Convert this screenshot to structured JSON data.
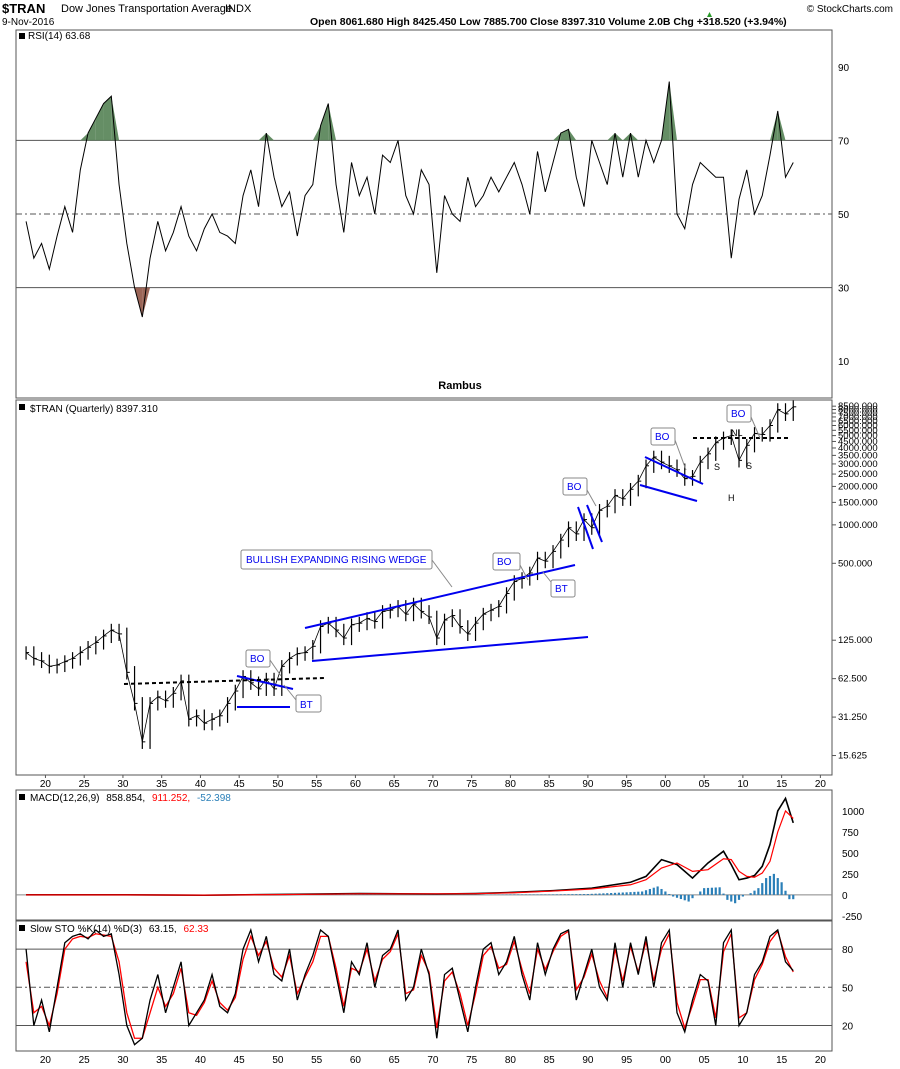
{
  "header": {
    "symbol": "$TRAN",
    "name": "Dow Jones Transportation Average",
    "exchange": "INDX",
    "date": "9-Nov-2016",
    "ohlc": "Open 8061.680  High 8425.450  Low 7885.700  Close 8397.310  Volume 2.0B  Chg +318.520 (+3.94%)",
    "ohlc_up_icon": "up-triangle",
    "brand": "© StockCharts.com",
    "watermark": "Rambus"
  },
  "colors": {
    "price": "#000000",
    "annotation": "#0000ee",
    "rsi_overbought_fill": "#4a7a4a",
    "rsi_oversold_fill": "#8a4a3a",
    "macd_line": "#000000",
    "macd_signal": "#ff0000",
    "macd_hist": "#2a7fb8",
    "sto_k": "#000000",
    "sto_d": "#ff0000"
  },
  "chart_data": [
    {
      "type": "line",
      "panel": "rsi",
      "label": "RSI(14) 63.68",
      "y_ticks": [
        "90",
        "70",
        "50",
        "30",
        "10"
      ],
      "ylim": [
        0,
        100
      ],
      "reference_lines": [
        70,
        50,
        30
      ],
      "x": [
        1917,
        1918,
        1919,
        1920,
        1921,
        1922,
        1923,
        1924,
        1925,
        1926,
        1927,
        1928,
        1929,
        1930,
        1931,
        1932,
        1933,
        1934,
        1935,
        1936,
        1937,
        1938,
        1939,
        1940,
        1941,
        1942,
        1943,
        1944,
        1945,
        1946,
        1947,
        1948,
        1949,
        1950,
        1951,
        1952,
        1953,
        1954,
        1955,
        1956,
        1957,
        1958,
        1959,
        1960,
        1961,
        1962,
        1963,
        1964,
        1965,
        1966,
        1967,
        1968,
        1969,
        1970,
        1971,
        1972,
        1973,
        1974,
        1975,
        1976,
        1977,
        1978,
        1979,
        1980,
        1981,
        1982,
        1983,
        1984,
        1985,
        1986,
        1987,
        1988,
        1989,
        1990,
        1991,
        1992,
        1993,
        1994,
        1995,
        1996,
        1997,
        1998,
        1999,
        2000,
        2001,
        2002,
        2003,
        2004,
        2005,
        2006,
        2007,
        2008,
        2009,
        2010,
        2011,
        2012,
        2013,
        2014,
        2015,
        2016
      ],
      "values": [
        48,
        38,
        42,
        35,
        44,
        52,
        45,
        62,
        72,
        76,
        80,
        82,
        58,
        42,
        30,
        22,
        38,
        48,
        40,
        45,
        52,
        44,
        40,
        46,
        50,
        45,
        44,
        42,
        55,
        62,
        52,
        72,
        60,
        52,
        56,
        44,
        55,
        58,
        74,
        80,
        58,
        45,
        64,
        55,
        60,
        50,
        66,
        64,
        70,
        55,
        50,
        62,
        58,
        34,
        55,
        50,
        48,
        60,
        52,
        55,
        60,
        56,
        60,
        64,
        58,
        50,
        67,
        56,
        64,
        72,
        73,
        60,
        52,
        70,
        64,
        58,
        72,
        60,
        72,
        60,
        70,
        64,
        70,
        86,
        50,
        46,
        58,
        64,
        62,
        60,
        60,
        38,
        54,
        62,
        50,
        55,
        66,
        78,
        60,
        64
      ]
    },
    {
      "type": "line",
      "panel": "price",
      "title": "$TRAN (Quarterly) 8397.310",
      "yscale": "log",
      "y_ticks": [
        "8500.000",
        "8000.000",
        "7500.000",
        "7000.000",
        "6500.000",
        "6000.000",
        "5500.000",
        "5000.000",
        "4500.000",
        "4000.000",
        "3500.000",
        "3000.000",
        "2500.000",
        "2000.000",
        "1500.000",
        "1000.000",
        "500.000",
        "125.000",
        "62.500",
        "31.250",
        "15.625"
      ],
      "x_ticks": [
        "20",
        "25",
        "30",
        "35",
        "40",
        "45",
        "50",
        "55",
        "60",
        "65",
        "70",
        "75",
        "80",
        "85",
        "90",
        "95",
        "00",
        "05",
        "10",
        "15",
        "20"
      ],
      "ylim": [
        11,
        9500
      ],
      "x": [
        1917,
        1918,
        1919,
        1920,
        1921,
        1922,
        1923,
        1924,
        1925,
        1926,
        1927,
        1928,
        1929,
        1930,
        1931,
        1932,
        1933,
        1934,
        1935,
        1936,
        1937,
        1938,
        1939,
        1940,
        1941,
        1942,
        1943,
        1944,
        1945,
        1946,
        1947,
        1948,
        1949,
        1950,
        1951,
        1952,
        1953,
        1954,
        1955,
        1956,
        1957,
        1958,
        1959,
        1960,
        1961,
        1962,
        1963,
        1964,
        1965,
        1966,
        1967,
        1968,
        1969,
        1970,
        1971,
        1972,
        1973,
        1974,
        1975,
        1976,
        1977,
        1978,
        1979,
        1980,
        1981,
        1982,
        1983,
        1984,
        1985,
        1986,
        1987,
        1988,
        1989,
        1990,
        1991,
        1992,
        1993,
        1994,
        1995,
        1996,
        1997,
        1998,
        1999,
        2000,
        2001,
        2002,
        2003,
        2004,
        2005,
        2006,
        2007,
        2008,
        2009,
        2010,
        2011,
        2012,
        2013,
        2014,
        2015,
        2016
      ],
      "values": [
        100,
        90,
        86,
        78,
        80,
        85,
        90,
        100,
        110,
        120,
        135,
        150,
        140,
        70,
        40,
        20,
        40,
        45,
        42,
        48,
        60,
        30,
        32,
        28,
        30,
        32,
        40,
        50,
        65,
        58,
        52,
        62,
        52,
        78,
        90,
        98,
        100,
        112,
        160,
        170,
        150,
        130,
        165,
        170,
        185,
        175,
        210,
        215,
        230,
        200,
        240,
        210,
        190,
        130,
        180,
        195,
        160,
        140,
        170,
        200,
        215,
        230,
        290,
        360,
        380,
        420,
        550,
        520,
        620,
        760,
        950,
        850,
        1100,
        950,
        1300,
        1400,
        1700,
        1600,
        1900,
        2200,
        2900,
        3400,
        3100,
        2900,
        2700,
        2300,
        2400,
        3100,
        3600,
        4400,
        4800,
        5000,
        3200,
        4200,
        5200,
        5100,
        6000,
        8000,
        7400,
        8400
      ]
    },
    {
      "type": "line",
      "panel": "macd",
      "label_name": "MACD(12,26,9)",
      "label_macd": "858.854,",
      "label_signal": "911.252,",
      "label_hist": "-52.398",
      "y_ticks": [
        "1000",
        "750",
        "500",
        "250",
        "0",
        "-250"
      ],
      "ylim": [
        -300,
        1250
      ],
      "x": [
        1917,
        1930,
        1940,
        1950,
        1960,
        1970,
        1975,
        1980,
        1985,
        1990,
        1995,
        1997,
        1999,
        2001,
        2003,
        2005,
        2007,
        2008,
        2009,
        2010,
        2011,
        2012,
        2013,
        2014,
        2015,
        2016
      ],
      "series": [
        {
          "name": "MACD",
          "values": [
            0,
            0,
            -5,
            5,
            15,
            10,
            15,
            30,
            50,
            80,
            150,
            220,
            420,
            360,
            200,
            380,
            520,
            360,
            180,
            200,
            230,
            340,
            600,
            1000,
            1150,
            858
          ]
        },
        {
          "name": "Signal",
          "values": [
            0,
            0,
            -3,
            3,
            12,
            12,
            14,
            25,
            45,
            70,
            120,
            180,
            320,
            380,
            280,
            300,
            430,
            420,
            280,
            220,
            210,
            260,
            400,
            750,
            1000,
            911
          ]
        },
        {
          "name": "Histogram",
          "values": [
            0,
            0,
            -2,
            2,
            3,
            -2,
            1,
            5,
            5,
            10,
            30,
            40,
            100,
            -20,
            -80,
            80,
            90,
            -60,
            -100,
            -20,
            20,
            80,
            200,
            250,
            150,
            -52
          ]
        }
      ]
    },
    {
      "type": "line",
      "panel": "stochastic",
      "label_name": "Slow STO %K(14) %D(3)",
      "label_k": "63.15,",
      "label_d": "62.33",
      "y_ticks": [
        "80",
        "50",
        "20"
      ],
      "ylim": [
        0,
        100
      ],
      "reference_lines": [
        80,
        50,
        20
      ],
      "x_ticks": [
        "20",
        "25",
        "30",
        "35",
        "40",
        "45",
        "50",
        "55",
        "60",
        "65",
        "70",
        "75",
        "80",
        "85",
        "90",
        "95",
        "00",
        "05",
        "10",
        "15",
        "20"
      ],
      "x": [
        1917,
        1918,
        1919,
        1920,
        1921,
        1922,
        1923,
        1924,
        1925,
        1926,
        1927,
        1928,
        1929,
        1930,
        1931,
        1932,
        1933,
        1934,
        1935,
        1936,
        1937,
        1938,
        1939,
        1940,
        1941,
        1942,
        1943,
        1944,
        1945,
        1946,
        1947,
        1948,
        1949,
        1950,
        1951,
        1952,
        1953,
        1954,
        1955,
        1956,
        1957,
        1958,
        1959,
        1960,
        1961,
        1962,
        1963,
        1964,
        1965,
        1966,
        1967,
        1968,
        1969,
        1970,
        1971,
        1972,
        1973,
        1974,
        1975,
        1976,
        1977,
        1978,
        1979,
        1980,
        1981,
        1982,
        1983,
        1984,
        1985,
        1986,
        1987,
        1988,
        1989,
        1990,
        1991,
        1992,
        1993,
        1994,
        1995,
        1996,
        1997,
        1998,
        1999,
        2000,
        2001,
        2002,
        2003,
        2004,
        2005,
        2006,
        2007,
        2008,
        2009,
        2010,
        2011,
        2012,
        2013,
        2014,
        2015,
        2016
      ],
      "series": [
        {
          "name": "%K",
          "values": [
            80,
            20,
            40,
            15,
            50,
            85,
            90,
            92,
            88,
            95,
            90,
            92,
            60,
            20,
            5,
            10,
            40,
            60,
            30,
            50,
            70,
            20,
            30,
            40,
            60,
            35,
            30,
            45,
            80,
            95,
            70,
            90,
            60,
            55,
            80,
            40,
            60,
            75,
            95,
            90,
            60,
            30,
            70,
            60,
            85,
            50,
            75,
            80,
            95,
            40,
            50,
            80,
            60,
            10,
            60,
            65,
            40,
            15,
            50,
            80,
            85,
            60,
            70,
            90,
            60,
            40,
            85,
            60,
            80,
            92,
            95,
            40,
            60,
            80,
            50,
            40,
            85,
            50,
            85,
            60,
            90,
            50,
            85,
            95,
            30,
            15,
            40,
            60,
            55,
            20,
            85,
            95,
            20,
            30,
            60,
            70,
            90,
            95,
            70,
            63
          ]
        },
        {
          "name": "%D",
          "values": [
            70,
            30,
            35,
            20,
            45,
            80,
            88,
            90,
            89,
            92,
            91,
            90,
            70,
            30,
            10,
            10,
            30,
            50,
            35,
            45,
            65,
            30,
            28,
            38,
            55,
            38,
            32,
            42,
            72,
            90,
            75,
            86,
            65,
            58,
            75,
            45,
            58,
            70,
            90,
            90,
            65,
            35,
            65,
            62,
            80,
            55,
            72,
            78,
            92,
            45,
            48,
            75,
            62,
            18,
            55,
            62,
            45,
            20,
            45,
            75,
            82,
            65,
            68,
            86,
            64,
            45,
            80,
            64,
            78,
            90,
            94,
            48,
            58,
            76,
            55,
            42,
            80,
            55,
            82,
            62,
            86,
            55,
            80,
            92,
            38,
            18,
            36,
            56,
            56,
            26,
            78,
            92,
            26,
            30,
            56,
            68,
            86,
            94,
            74,
            62
          ]
        }
      ]
    }
  ],
  "annotations": {
    "wedge_label": "BULLISH EXPANDING RISING WEDGE",
    "bo1": "BO",
    "bt1": "BT",
    "bo2": "BO",
    "bt2": "BT",
    "bo3": "BO",
    "bo4": "BO",
    "bo5": "BO",
    "s_left": "S",
    "head": "H",
    "s_right": "S",
    "neckline": "NL"
  }
}
